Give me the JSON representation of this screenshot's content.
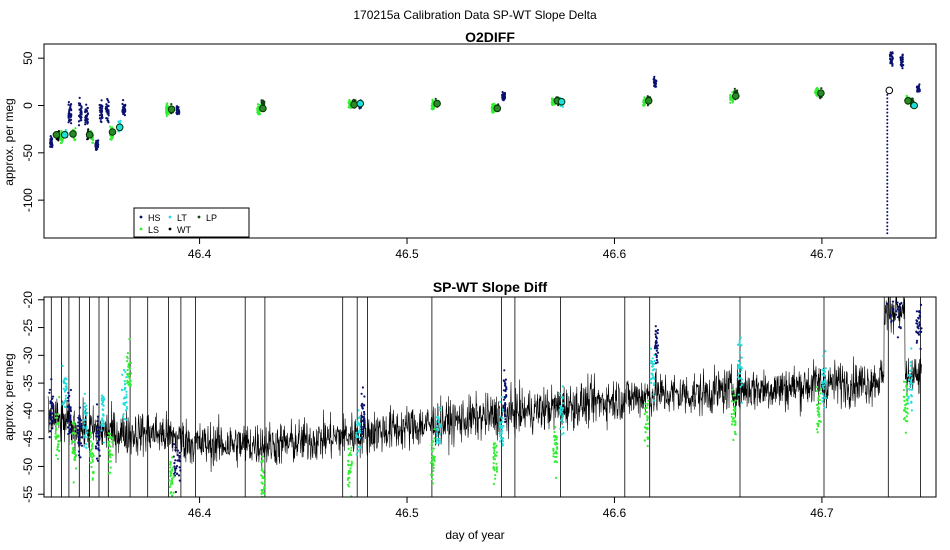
{
  "figure": {
    "suptitle": "170215a   Calibration Data SP-WT Slope Delta",
    "xlabel": "day of year"
  },
  "chart_data": [
    {
      "type": "scatter",
      "title": "O2DIFF",
      "xlabel": "",
      "ylabel": "approx. per meg",
      "xlim": [
        46.325,
        46.755
      ],
      "ylim": [
        -140,
        65
      ],
      "xticks": [
        46.4,
        46.5,
        46.6,
        46.7
      ],
      "xtick_labels": [
        "46.4",
        "46.5",
        "46.6",
        "46.7"
      ],
      "yticks": [
        50,
        0,
        -50,
        -100
      ],
      "ytick_labels": [
        "50",
        "0",
        "-50",
        "-100"
      ],
      "grid": false,
      "legend": {
        "placement": "bottom-left",
        "entries": [
          {
            "label": "HS",
            "color": "#0b1170",
            "symbol": "dot"
          },
          {
            "label": "LS",
            "color": "#33ee33",
            "symbol": "dot"
          },
          {
            "label": "LT",
            "color": "#22dddd",
            "symbol": "dot"
          },
          {
            "label": "WT",
            "color": "#000000",
            "symbol": "dot"
          },
          {
            "label": "LP",
            "color": "#114411",
            "symbol": "dot"
          }
        ]
      },
      "clusters": [
        {
          "series": "HS",
          "x": 46.3285,
          "y": -39,
          "spread": 4
        },
        {
          "series": "WT",
          "x": 46.3315,
          "y": -32,
          "spread": 3
        },
        {
          "series": "LS",
          "x": 46.3335,
          "y": -33,
          "spread": 4
        },
        {
          "series": "LT",
          "x": 46.3355,
          "y": -31,
          "spread": 3
        },
        {
          "series": "HS",
          "x": 46.3375,
          "y": -7,
          "spread": 7
        },
        {
          "series": "LS",
          "x": 46.3395,
          "y": -30,
          "spread": 4
        },
        {
          "series": "HS",
          "x": 46.3425,
          "y": -6,
          "spread": 9
        },
        {
          "series": "HS",
          "x": 46.3455,
          "y": -10,
          "spread": 9
        },
        {
          "series": "WT",
          "x": 46.3465,
          "y": -31,
          "spread": 3
        },
        {
          "series": "LS",
          "x": 46.348,
          "y": -32,
          "spread": 4
        },
        {
          "series": "HS",
          "x": 46.3505,
          "y": -42,
          "spread": 4
        },
        {
          "series": "HS",
          "x": 46.3525,
          "y": -5,
          "spread": 8
        },
        {
          "series": "HS",
          "x": 46.3555,
          "y": -6,
          "spread": 8
        },
        {
          "series": "LS",
          "x": 46.3575,
          "y": -30,
          "spread": 5
        },
        {
          "series": "LT",
          "x": 46.3615,
          "y": -23,
          "spread": 4
        },
        {
          "series": "HS",
          "x": 46.3635,
          "y": -5,
          "spread": 6
        },
        {
          "series": "LS",
          "x": 46.3845,
          "y": -5,
          "spread": 4
        },
        {
          "series": "LP",
          "x": 46.3865,
          "y": -4,
          "spread": 3
        },
        {
          "series": "HS",
          "x": 46.3895,
          "y": -5,
          "spread": 3
        },
        {
          "series": "LS",
          "x": 46.4285,
          "y": -5,
          "spread": 4
        },
        {
          "series": "LP",
          "x": 46.4305,
          "y": 0,
          "spread": 3
        },
        {
          "series": "LS",
          "x": 46.4725,
          "y": 1,
          "spread": 3
        },
        {
          "series": "LP",
          "x": 46.4745,
          "y": 2,
          "spread": 3
        },
        {
          "series": "HS",
          "x": 46.4775,
          "y": 1,
          "spread": 3
        },
        {
          "series": "LS",
          "x": 46.5125,
          "y": 1,
          "spread": 3
        },
        {
          "series": "LP",
          "x": 46.5145,
          "y": 3,
          "spread": 3
        },
        {
          "series": "LS",
          "x": 46.5415,
          "y": -3,
          "spread": 4
        },
        {
          "series": "LP",
          "x": 46.5435,
          "y": -2,
          "spread": 3
        },
        {
          "series": "HS",
          "x": 46.5465,
          "y": 10,
          "spread": 3
        },
        {
          "series": "LS",
          "x": 46.5705,
          "y": 4,
          "spread": 3
        },
        {
          "series": "LP",
          "x": 46.5725,
          "y": 5,
          "spread": 3
        },
        {
          "series": "LT",
          "x": 46.5745,
          "y": 3,
          "spread": 3
        },
        {
          "series": "LS",
          "x": 46.6145,
          "y": 4,
          "spread": 3
        },
        {
          "series": "LP",
          "x": 46.6165,
          "y": 6,
          "spread": 3
        },
        {
          "series": "HS",
          "x": 46.6195,
          "y": 24,
          "spread": 3
        },
        {
          "series": "LS",
          "x": 46.6565,
          "y": 8,
          "spread": 3
        },
        {
          "series": "LP",
          "x": 46.6585,
          "y": 12,
          "spread": 3
        },
        {
          "series": "LS",
          "x": 46.6975,
          "y": 14,
          "spread": 3
        },
        {
          "series": "LP",
          "x": 46.6995,
          "y": 13,
          "spread": 3
        },
        {
          "series": "HS",
          "x": 46.7335,
          "y": 50,
          "spread": 5
        },
        {
          "series": "HS",
          "x": 46.7385,
          "y": 48,
          "spread": 5
        },
        {
          "series": "LS",
          "x": 46.7415,
          "y": 6,
          "spread": 3
        },
        {
          "series": "LP",
          "x": 46.7435,
          "y": 3,
          "spread": 3
        },
        {
          "series": "HS",
          "x": 46.7465,
          "y": 17,
          "spread": 3
        }
      ],
      "means": [
        {
          "series": "LP",
          "x": 46.331,
          "y": -31
        },
        {
          "series": "LT",
          "x": 46.335,
          "y": -31
        },
        {
          "series": "LP",
          "x": 46.339,
          "y": -30
        },
        {
          "series": "LP",
          "x": 46.347,
          "y": -31
        },
        {
          "series": "LP",
          "x": 46.358,
          "y": -28
        },
        {
          "series": "LT",
          "x": 46.3615,
          "y": -23
        },
        {
          "series": "LP",
          "x": 46.3865,
          "y": -4
        },
        {
          "series": "LP",
          "x": 46.4305,
          "y": -3
        },
        {
          "series": "LP",
          "x": 46.4745,
          "y": 1
        },
        {
          "series": "LT",
          "x": 46.4775,
          "y": 2
        },
        {
          "series": "LP",
          "x": 46.5145,
          "y": 2
        },
        {
          "series": "LP",
          "x": 46.5435,
          "y": -3
        },
        {
          "series": "LP",
          "x": 46.5725,
          "y": 5
        },
        {
          "series": "LT",
          "x": 46.5745,
          "y": 4
        },
        {
          "series": "LP",
          "x": 46.6165,
          "y": 5
        },
        {
          "series": "LP",
          "x": 46.6585,
          "y": 10
        },
        {
          "series": "LP",
          "x": 46.6995,
          "y": 13
        },
        {
          "series": "WT",
          "x": 46.7325,
          "y": 16
        },
        {
          "series": "LP",
          "x": 46.7415,
          "y": 5
        },
        {
          "series": "LT",
          "x": 46.7445,
          "y": 0
        }
      ],
      "spike": {
        "series": "HS",
        "x": 46.7315,
        "y_from": 15,
        "y_to": -135
      }
    },
    {
      "type": "line",
      "title": "SP-WT Slope Diff",
      "xlabel": "day of year",
      "ylabel": "approx. per meg",
      "xlim": [
        46.325,
        46.755
      ],
      "ylim": [
        -55.5,
        -19.5
      ],
      "xticks": [
        46.4,
        46.5,
        46.6,
        46.7
      ],
      "xtick_labels": [
        "46.4",
        "46.5",
        "46.6",
        "46.7"
      ],
      "yticks": [
        -20,
        -25,
        -30,
        -35,
        -40,
        -45,
        -50,
        -55
      ],
      "ytick_labels": [
        "-20",
        "-25",
        "-30",
        "-35",
        "-40",
        "-45",
        "-50",
        "-55"
      ],
      "grid": false,
      "baseline": [
        [
          46.327,
          -41
        ],
        [
          46.34,
          -43
        ],
        [
          46.36,
          -44
        ],
        [
          46.38,
          -44
        ],
        [
          46.4,
          -46
        ],
        [
          46.42,
          -46
        ],
        [
          46.44,
          -46
        ],
        [
          46.46,
          -45
        ],
        [
          46.48,
          -44
        ],
        [
          46.5,
          -43
        ],
        [
          46.52,
          -42
        ],
        [
          46.54,
          -41
        ],
        [
          46.56,
          -40
        ],
        [
          46.58,
          -39
        ],
        [
          46.6,
          -38
        ],
        [
          46.62,
          -37
        ],
        [
          46.64,
          -37
        ],
        [
          46.66,
          -36
        ],
        [
          46.68,
          -36
        ],
        [
          46.7,
          -35
        ],
        [
          46.72,
          -35
        ],
        [
          46.73,
          -34
        ]
      ],
      "noise_amplitude": 5,
      "spikes": [
        46.3285,
        46.3335,
        46.337,
        46.342,
        46.347,
        46.3515,
        46.356,
        46.3665,
        46.375,
        46.385,
        46.391,
        46.398,
        46.422,
        46.4315,
        46.469,
        46.476,
        46.481,
        46.512,
        46.5455,
        46.552,
        46.574,
        46.605,
        46.617,
        46.6605,
        46.701,
        46.732,
        46.7475
      ],
      "colored_segments": [
        {
          "series": "HS",
          "x0": 46.3275,
          "x1": 46.3295,
          "y": -40
        },
        {
          "series": "LS",
          "x0": 46.3305,
          "x1": 46.3325,
          "y": -44
        },
        {
          "series": "LT",
          "x0": 46.334,
          "x1": 46.336,
          "y": -37
        },
        {
          "series": "HS",
          "x0": 46.3365,
          "x1": 46.338,
          "y": -41
        },
        {
          "series": "LS",
          "x0": 46.3385,
          "x1": 46.3405,
          "y": -46
        },
        {
          "series": "HS",
          "x0": 46.3415,
          "x1": 46.3435,
          "y": -44
        },
        {
          "series": "LT",
          "x0": 46.344,
          "x1": 46.346,
          "y": -42
        },
        {
          "series": "LS",
          "x0": 46.347,
          "x1": 46.349,
          "y": -48
        },
        {
          "series": "HS",
          "x0": 46.35,
          "x1": 46.352,
          "y": -45
        },
        {
          "series": "LT",
          "x0": 46.3525,
          "x1": 46.354,
          "y": -40
        },
        {
          "series": "LS",
          "x0": 46.356,
          "x1": 46.358,
          "y": -47
        },
        {
          "series": "LT",
          "x0": 46.3625,
          "x1": 46.365,
          "y": -37
        },
        {
          "series": "LS",
          "x0": 46.365,
          "x1": 46.367,
          "y": -33
        },
        {
          "series": "HS",
          "x0": 46.3875,
          "x1": 46.391,
          "y": -50
        },
        {
          "series": "LS",
          "x0": 46.3855,
          "x1": 46.3875,
          "y": -52
        },
        {
          "series": "LS",
          "x0": 46.4295,
          "x1": 46.4315,
          "y": -52
        },
        {
          "series": "LS",
          "x0": 46.4715,
          "x1": 46.4735,
          "y": -50
        },
        {
          "series": "LT",
          "x0": 46.4755,
          "x1": 46.4775,
          "y": -44
        },
        {
          "series": "HS",
          "x0": 46.478,
          "x1": 46.4795,
          "y": -41
        },
        {
          "series": "LS",
          "x0": 46.5115,
          "x1": 46.5135,
          "y": -48
        },
        {
          "series": "LT",
          "x0": 46.514,
          "x1": 46.516,
          "y": -43
        },
        {
          "series": "LS",
          "x0": 46.5415,
          "x1": 46.5435,
          "y": -49
        },
        {
          "series": "LT",
          "x0": 46.5445,
          "x1": 46.5465,
          "y": -43
        },
        {
          "series": "HS",
          "x0": 46.5465,
          "x1": 46.548,
          "y": -37
        },
        {
          "series": "LS",
          "x0": 46.5705,
          "x1": 46.5725,
          "y": -46
        },
        {
          "series": "LT",
          "x0": 46.5735,
          "x1": 46.5755,
          "y": -40
        },
        {
          "series": "LS",
          "x0": 46.6145,
          "x1": 46.6165,
          "y": -42
        },
        {
          "series": "LT",
          "x0": 46.6175,
          "x1": 46.6195,
          "y": -33
        },
        {
          "series": "HS",
          "x0": 46.6195,
          "x1": 46.621,
          "y": -28
        },
        {
          "series": "LS",
          "x0": 46.6565,
          "x1": 46.6585,
          "y": -40
        },
        {
          "series": "LT",
          "x0": 46.6595,
          "x1": 46.6615,
          "y": -32
        },
        {
          "series": "LS",
          "x0": 46.6975,
          "x1": 46.6995,
          "y": -40
        },
        {
          "series": "LT",
          "x0": 46.7,
          "x1": 46.702,
          "y": -35
        },
        {
          "series": "HS",
          "x0": 46.731,
          "x1": 46.739,
          "y": -22
        },
        {
          "series": "LS",
          "x0": 46.7395,
          "x1": 46.7415,
          "y": -39
        },
        {
          "series": "LT",
          "x0": 46.7415,
          "x1": 46.7435,
          "y": -35
        },
        {
          "series": "HS",
          "x0": 46.7455,
          "x1": 46.748,
          "y": -25
        }
      ]
    }
  ]
}
